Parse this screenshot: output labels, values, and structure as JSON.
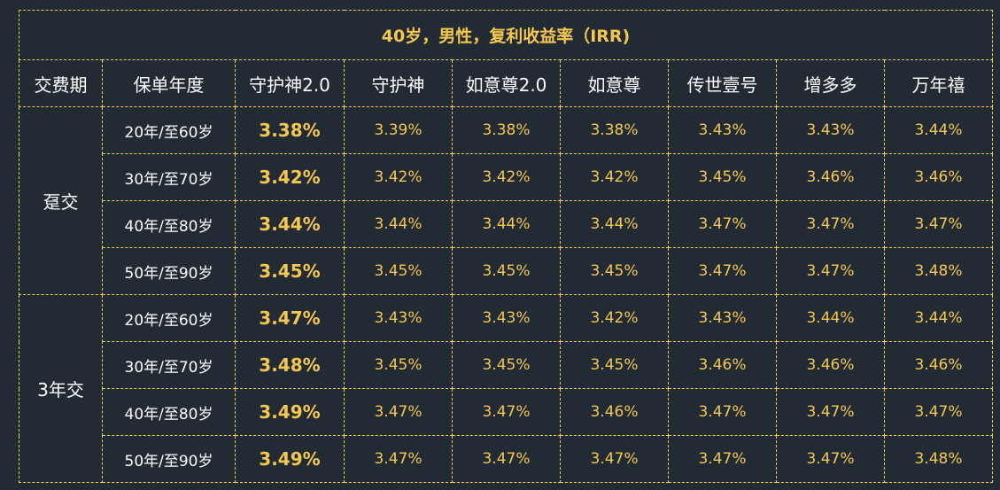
{
  "title": "40岁，男性，复利收益率（IRR)",
  "headers": [
    "交费期",
    "保单年度",
    "守护神2.0",
    "守护神",
    "如意尊2.0",
    "如意尊",
    "传世壹号",
    "增多多",
    "万年禧"
  ],
  "colors": {
    "background": "#222a33",
    "accent": "#f4c752",
    "border": "#f2cc52",
    "text": "#ffffff"
  },
  "groups": [
    {
      "period": "趸交",
      "rows": [
        {
          "year": "20年/至60岁",
          "values": [
            "3.38%",
            "3.39%",
            "3.38%",
            "3.38%",
            "3.43%",
            "3.43%",
            "3.44%"
          ]
        },
        {
          "year": "30年/至70岁",
          "values": [
            "3.42%",
            "3.42%",
            "3.42%",
            "3.42%",
            "3.45%",
            "3.46%",
            "3.46%"
          ]
        },
        {
          "year": "40年/至80岁",
          "values": [
            "3.44%",
            "3.44%",
            "3.44%",
            "3.44%",
            "3.47%",
            "3.47%",
            "3.47%"
          ]
        },
        {
          "year": "50年/至90岁",
          "values": [
            "3.45%",
            "3.45%",
            "3.45%",
            "3.45%",
            "3.47%",
            "3.47%",
            "3.48%"
          ]
        }
      ]
    },
    {
      "period": "3年交",
      "rows": [
        {
          "year": "20年/至60岁",
          "values": [
            "3.47%",
            "3.43%",
            "3.43%",
            "3.42%",
            "3.43%",
            "3.44%",
            "3.44%"
          ]
        },
        {
          "year": "30年/至70岁",
          "values": [
            "3.48%",
            "3.45%",
            "3.45%",
            "3.45%",
            "3.46%",
            "3.46%",
            "3.46%"
          ]
        },
        {
          "year": "40年/至80岁",
          "values": [
            "3.49%",
            "3.47%",
            "3.47%",
            "3.46%",
            "3.47%",
            "3.47%",
            "3.47%"
          ]
        },
        {
          "year": "50年/至90岁",
          "values": [
            "3.49%",
            "3.47%",
            "3.47%",
            "3.47%",
            "3.47%",
            "3.47%",
            "3.48%"
          ]
        }
      ]
    }
  ]
}
